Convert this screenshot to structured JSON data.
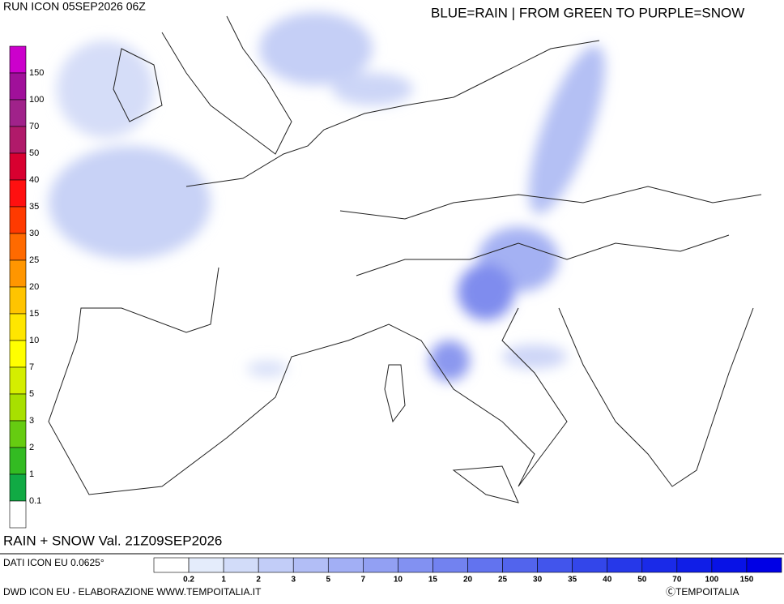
{
  "header": {
    "run": "RUN ICON 05SEP2026 06Z",
    "note": "BLUE=RAIN | FROM GREEN TO PURPLE=SNOW"
  },
  "map": {
    "caption": "RAIN + SNOW Val. 21Z09SEP2026"
  },
  "snow_scale": {
    "labels": [
      "150",
      "100",
      "70",
      "50",
      "40",
      "35",
      "30",
      "25",
      "20",
      "15",
      "10",
      "7",
      "5",
      "3",
      "2",
      "1",
      "0.1"
    ],
    "colors": [
      "#cc00cc",
      "#a0109a",
      "#a0228a",
      "#b01a6a",
      "#d80030",
      "#ff1010",
      "#ff3a00",
      "#ff6a00",
      "#ff9600",
      "#ffc400",
      "#ffe600",
      "#ffff00",
      "#d4ee00",
      "#a8e000",
      "#66cc11",
      "#33bb22",
      "#11aa44",
      "#ffffff"
    ]
  },
  "rain_scale": {
    "labels": [
      "0.2",
      "1",
      "2",
      "3",
      "5",
      "7",
      "10",
      "15",
      "20",
      "25",
      "30",
      "35",
      "40",
      "50",
      "70",
      "100",
      "150"
    ],
    "colors": [
      "#ffffff",
      "#e4ecfb",
      "#d2dcf9",
      "#c2cdf8",
      "#b2bef6",
      "#a2aff5",
      "#92a0f3",
      "#8291f2",
      "#7282f0",
      "#6273ef",
      "#5264ed",
      "#4255ec",
      "#3346ea",
      "#2638e9",
      "#1a2ae8",
      "#101ee7",
      "#0812e6",
      "#0000e5"
    ]
  },
  "footer": {
    "data_note": "DATI ICON EU 0.0625°",
    "credit": "DWD ICON EU - ELABORAZIONE WWW.TEMPOITALIA.IT",
    "copyright": "ⒸTEMPOITALIA"
  }
}
